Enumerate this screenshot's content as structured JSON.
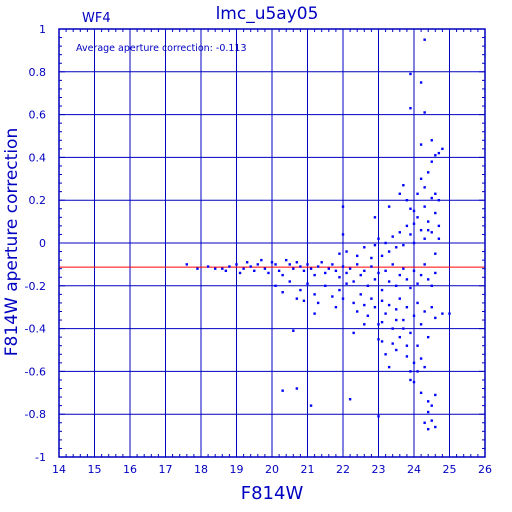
{
  "chart_data": {
    "type": "scatter",
    "title": "lmc_u5ay05",
    "panel_label": "WF4",
    "annotation": "Average aperture correction: -0.113",
    "xlabel": "F814W",
    "ylabel": "F814W aperture correction",
    "xlim": [
      14,
      26
    ],
    "ylim": [
      -1,
      1
    ],
    "xticks": [
      "14",
      "15",
      "16",
      "17",
      "18",
      "19",
      "20",
      "21",
      "22",
      "23",
      "24",
      "25",
      "26"
    ],
    "yticks": [
      "-1",
      "-0.8",
      "-0.6",
      "-0.4",
      "-0.2",
      "0",
      "0.2",
      "0.4",
      "0.6",
      "0.8",
      "1"
    ],
    "grid": true,
    "reference_line": {
      "y": -0.113,
      "color": "#ff0000"
    },
    "colors": {
      "axis": "#0000c0",
      "points": "#0000ff",
      "reference": "#ff0000",
      "text": "#0000c0"
    },
    "series": [
      {
        "points": [
          [
            17.6,
            -0.1
          ],
          [
            17.9,
            -0.12
          ],
          [
            18.2,
            -0.11
          ],
          [
            18.4,
            -0.12
          ],
          [
            18.6,
            -0.12
          ],
          [
            18.7,
            -0.13
          ],
          [
            18.8,
            -0.11
          ],
          [
            19.0,
            -0.1
          ],
          [
            19.1,
            -0.14
          ],
          [
            19.2,
            -0.12
          ],
          [
            19.3,
            -0.09
          ],
          [
            19.4,
            -0.11
          ],
          [
            19.5,
            -0.13
          ],
          [
            19.6,
            -0.1
          ],
          [
            19.7,
            -0.08
          ],
          [
            19.8,
            -0.12
          ],
          [
            19.9,
            -0.14
          ],
          [
            20.0,
            -0.09
          ],
          [
            20.1,
            -0.1
          ],
          [
            20.2,
            -0.13
          ],
          [
            20.3,
            -0.15
          ],
          [
            20.4,
            -0.08
          ],
          [
            20.5,
            -0.1
          ],
          [
            20.6,
            -0.12
          ],
          [
            20.7,
            -0.09
          ],
          [
            20.8,
            -0.11
          ],
          [
            20.9,
            -0.13
          ],
          [
            21.0,
            -0.1
          ],
          [
            21.1,
            -0.12
          ],
          [
            21.2,
            -0.15
          ],
          [
            21.3,
            -0.11
          ],
          [
            21.4,
            -0.09
          ],
          [
            21.5,
            -0.14
          ],
          [
            21.6,
            -0.12
          ],
          [
            21.7,
            -0.1
          ],
          [
            21.8,
            -0.13
          ],
          [
            21.9,
            -0.16
          ],
          [
            22.0,
            -0.11
          ],
          [
            22.1,
            -0.14
          ],
          [
            22.2,
            -0.12
          ],
          [
            22.3,
            -0.18
          ],
          [
            22.4,
            -0.1
          ],
          [
            22.5,
            -0.15
          ],
          [
            22.6,
            -0.13
          ],
          [
            22.7,
            -0.2
          ],
          [
            22.8,
            -0.11
          ],
          [
            22.9,
            -0.17
          ],
          [
            23.0,
            -0.14
          ],
          [
            23.1,
            -0.22
          ],
          [
            23.2,
            -0.13
          ],
          [
            23.3,
            -0.18
          ],
          [
            23.4,
            -0.1
          ],
          [
            23.5,
            -0.2
          ],
          [
            23.6,
            -0.15
          ],
          [
            23.7,
            -0.12
          ],
          [
            23.8,
            -0.17
          ],
          [
            23.9,
            -0.21
          ],
          [
            24.0,
            -0.13
          ],
          [
            24.1,
            -0.19
          ],
          [
            24.2,
            -0.15
          ],
          [
            24.3,
            -0.1
          ],
          [
            24.4,
            -0.17
          ],
          [
            24.5,
            -0.2
          ],
          [
            24.6,
            -0.14
          ],
          [
            20.1,
            -0.2
          ],
          [
            20.3,
            -0.23
          ],
          [
            20.5,
            -0.18
          ],
          [
            20.7,
            -0.26
          ],
          [
            20.8,
            -0.22
          ],
          [
            21.0,
            -0.19
          ],
          [
            21.2,
            -0.24
          ],
          [
            21.3,
            -0.28
          ],
          [
            21.5,
            -0.2
          ],
          [
            21.7,
            -0.25
          ],
          [
            21.8,
            -0.3
          ],
          [
            21.9,
            -0.22
          ],
          [
            22.0,
            -0.26
          ],
          [
            22.1,
            -0.19
          ],
          [
            22.3,
            -0.28
          ],
          [
            22.4,
            -0.32
          ],
          [
            22.5,
            -0.24
          ],
          [
            22.6,
            -0.29
          ],
          [
            22.7,
            -0.34
          ],
          [
            22.8,
            -0.26
          ],
          [
            22.9,
            -0.3
          ],
          [
            23.0,
            -0.38
          ],
          [
            23.1,
            -0.27
          ],
          [
            23.2,
            -0.33
          ],
          [
            23.3,
            -0.29
          ],
          [
            23.4,
            -0.4
          ],
          [
            23.5,
            -0.31
          ],
          [
            23.6,
            -0.26
          ],
          [
            23.7,
            -0.36
          ],
          [
            23.8,
            -0.3
          ],
          [
            23.9,
            -0.42
          ],
          [
            24.0,
            -0.34
          ],
          [
            24.1,
            -0.28
          ],
          [
            24.2,
            -0.38
          ],
          [
            24.3,
            -0.32
          ],
          [
            24.4,
            -0.44
          ],
          [
            24.5,
            -0.3
          ],
          [
            24.6,
            -0.35
          ],
          [
            24.8,
            -0.33
          ],
          [
            25.0,
            -0.33
          ],
          [
            21.9,
            -0.05
          ],
          [
            22.0,
            0.04
          ],
          [
            22.1,
            -0.04
          ],
          [
            22.4,
            -0.06
          ],
          [
            22.6,
            -0.02
          ],
          [
            22.8,
            -0.07
          ],
          [
            22.9,
            -0.01
          ],
          [
            23.0,
            0.02
          ],
          [
            23.1,
            -0.06
          ],
          [
            23.2,
            0.0
          ],
          [
            23.3,
            -0.04
          ],
          [
            23.4,
            0.03
          ],
          [
            23.5,
            -0.02
          ],
          [
            23.6,
            0.05
          ],
          [
            23.7,
            -0.01
          ],
          [
            23.8,
            0.08
          ],
          [
            23.9,
            0.04
          ],
          [
            24.0,
            0.0
          ],
          [
            24.1,
            0.12
          ],
          [
            24.2,
            0.06
          ],
          [
            24.3,
            0.02
          ],
          [
            24.4,
            0.1
          ],
          [
            24.5,
            0.05
          ],
          [
            24.6,
            0.14
          ],
          [
            24.7,
            0.08
          ],
          [
            22.0,
            0.17
          ],
          [
            22.9,
            0.12
          ],
          [
            23.3,
            0.17
          ],
          [
            23.6,
            0.23
          ],
          [
            23.7,
            0.27
          ],
          [
            23.8,
            0.2
          ],
          [
            24.0,
            0.15
          ],
          [
            24.2,
            0.3
          ],
          [
            24.3,
            0.26
          ],
          [
            24.5,
            0.21
          ],
          [
            24.6,
            0.23
          ],
          [
            24.7,
            0.2
          ],
          [
            24.4,
            0.33
          ],
          [
            24.5,
            0.38
          ],
          [
            24.6,
            0.41
          ],
          [
            24.2,
            0.46
          ],
          [
            24.5,
            0.48
          ],
          [
            24.7,
            0.42
          ],
          [
            24.8,
            0.44
          ],
          [
            23.9,
            0.16
          ],
          [
            24.0,
            0.09
          ],
          [
            24.1,
            0.23
          ],
          [
            24.3,
            0.17
          ],
          [
            24.4,
            0.06
          ],
          [
            24.6,
            -0.05
          ],
          [
            24.7,
            0.02
          ],
          [
            23.9,
            0.79
          ],
          [
            23.9,
            0.63
          ],
          [
            24.2,
            0.75
          ],
          [
            24.3,
            0.61
          ],
          [
            24.3,
            0.95
          ],
          [
            20.3,
            -0.69
          ],
          [
            20.7,
            -0.68
          ],
          [
            21.1,
            -0.76
          ],
          [
            22.2,
            -0.73
          ],
          [
            23.0,
            -0.81
          ],
          [
            23.1,
            -0.46
          ],
          [
            23.2,
            -0.52
          ],
          [
            23.3,
            -0.58
          ],
          [
            23.5,
            -0.5
          ],
          [
            23.6,
            -0.44
          ],
          [
            23.8,
            -0.53
          ],
          [
            23.9,
            -0.6
          ],
          [
            24.0,
            -0.56
          ],
          [
            24.1,
            -0.48
          ],
          [
            23.9,
            -0.64
          ],
          [
            24.0,
            -0.65
          ],
          [
            24.2,
            -0.7
          ],
          [
            24.2,
            -0.54
          ],
          [
            24.3,
            -0.58
          ],
          [
            24.4,
            -0.74
          ],
          [
            24.4,
            -0.79
          ],
          [
            24.5,
            -0.76
          ],
          [
            24.6,
            -0.71
          ],
          [
            24.5,
            -0.83
          ],
          [
            24.3,
            -0.84
          ],
          [
            24.4,
            -0.87
          ],
          [
            24.6,
            -0.86
          ],
          [
            24.1,
            -0.6
          ],
          [
            23.8,
            -0.48
          ],
          [
            23.7,
            -0.4
          ],
          [
            20.6,
            -0.41
          ],
          [
            22.3,
            -0.42
          ],
          [
            23.0,
            -0.45
          ],
          [
            23.4,
            -0.47
          ],
          [
            21.2,
            -0.33
          ],
          [
            22.6,
            -0.38
          ],
          [
            23.1,
            -0.37
          ],
          [
            23.5,
            -0.36
          ],
          [
            20.9,
            -0.27
          ]
        ]
      }
    ]
  }
}
